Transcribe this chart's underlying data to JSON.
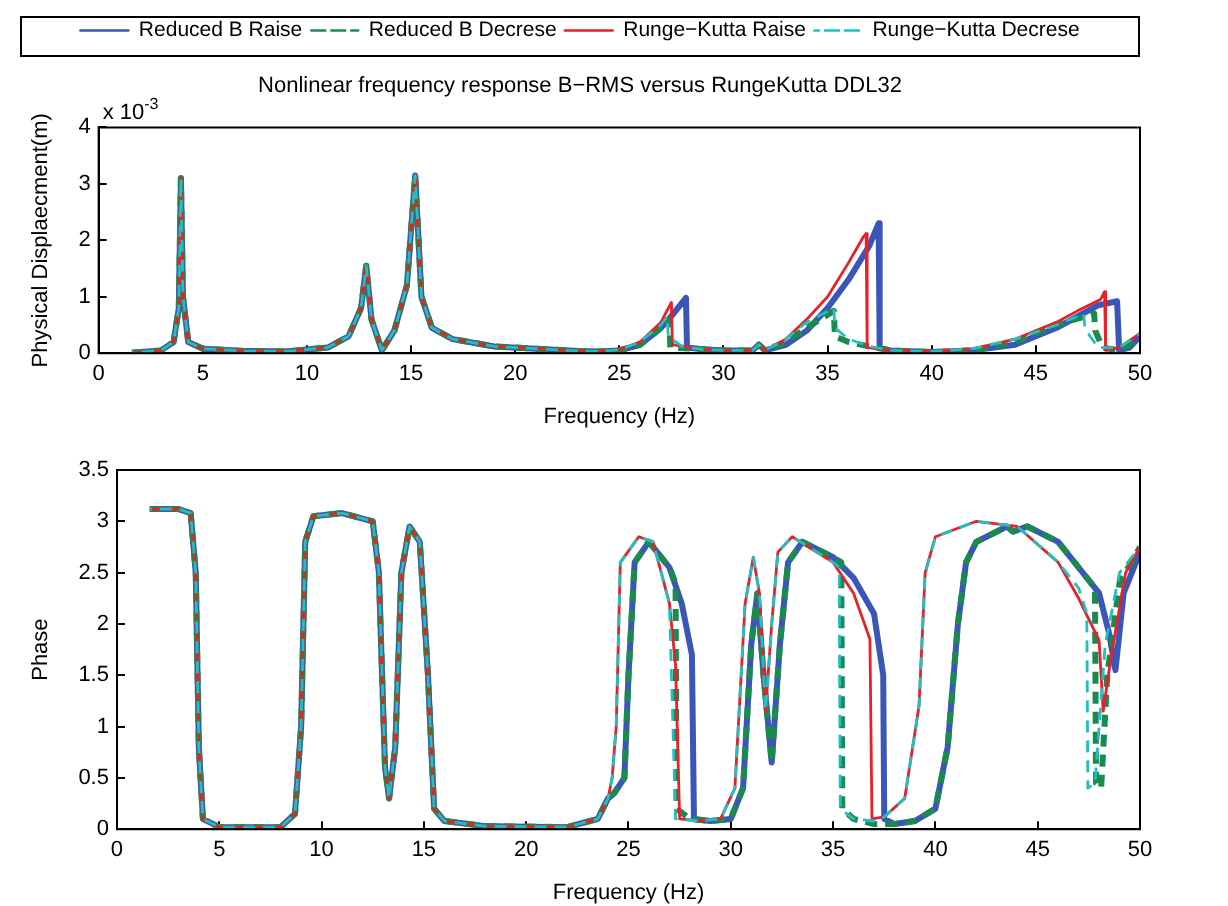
{
  "chart_data": [
    {
      "type": "line",
      "title": "Nonlinear frequency response B−RMS versus RungeKutta DDL32",
      "xlabel": "Frequency (Hz)",
      "ylabel": "Physical Displaecment(m)",
      "annotations": [
        "x 10$^{-3}$"
      ],
      "xlim": [
        0,
        50
      ],
      "xticks": [
        0,
        5,
        10,
        15,
        20,
        25,
        30,
        35,
        40,
        45,
        50
      ],
      "ylim": [
        0,
        4
      ],
      "yticks": [
        0,
        1,
        2,
        3,
        4
      ],
      "grid": false,
      "legend": "top",
      "series": [
        {
          "name": "Reduced B Raise",
          "color": "#3a56b8",
          "line_style": "solid",
          "x": [
            1.6,
            3,
            3.6,
            3.85,
            3.95,
            4.05,
            4.3,
            5,
            7,
            9,
            11,
            12,
            12.6,
            12.85,
            13.1,
            13.6,
            14.2,
            14.8,
            15.2,
            15.5,
            16,
            17,
            19,
            21,
            23,
            24,
            25,
            26,
            27,
            27.6,
            28.2,
            28.25,
            29,
            30,
            31.4,
            31.7,
            32,
            33,
            34,
            35,
            36,
            37,
            37.45,
            37.5,
            38,
            40,
            42,
            44,
            46,
            47,
            48,
            48.9,
            49,
            49.5,
            50
          ],
          "values": [
            0.01,
            0.05,
            0.2,
            0.8,
            3.1,
            1,
            0.2,
            0.08,
            0.04,
            0.03,
            0.1,
            0.3,
            0.8,
            1.55,
            0.6,
            0.05,
            0.4,
            1.2,
            3.15,
            1,
            0.45,
            0.25,
            0.12,
            0.08,
            0.04,
            0.03,
            0.05,
            0.15,
            0.45,
            0.7,
            0.98,
            0.1,
            0.07,
            0.05,
            0.05,
            0.15,
            0.05,
            0.15,
            0.4,
            0.8,
            1.3,
            1.9,
            2.3,
            0.1,
            0.05,
            0.02,
            0.05,
            0.15,
            0.45,
            0.65,
            0.85,
            0.92,
            0.05,
            0.1,
            0.3
          ]
        },
        {
          "name": "Reduced B Decrese",
          "color": "#1a8a50",
          "line_style": "dashed",
          "x": [
            1.6,
            3,
            3.6,
            3.85,
            3.95,
            4.05,
            4.3,
            5,
            7,
            9,
            11,
            12,
            12.6,
            12.85,
            13.1,
            13.6,
            14.2,
            14.8,
            15.2,
            15.5,
            16,
            17,
            19,
            21,
            23,
            24,
            25,
            26,
            27,
            27.4,
            27.45,
            29,
            30,
            31.4,
            31.7,
            32,
            33,
            34,
            35.3,
            35.35,
            36,
            37,
            38,
            40,
            42,
            44,
            46,
            47.8,
            47.85,
            48.2,
            49,
            49.5,
            50
          ],
          "values": [
            0.01,
            0.05,
            0.2,
            0.8,
            3.1,
            1,
            0.2,
            0.08,
            0.04,
            0.03,
            0.1,
            0.3,
            0.8,
            1.55,
            0.6,
            0.05,
            0.4,
            1.2,
            3.15,
            1,
            0.45,
            0.25,
            0.12,
            0.08,
            0.04,
            0.03,
            0.05,
            0.15,
            0.45,
            0.6,
            0.1,
            0.07,
            0.05,
            0.05,
            0.15,
            0.05,
            0.2,
            0.45,
            0.75,
            0.3,
            0.2,
            0.12,
            0.05,
            0.02,
            0.05,
            0.2,
            0.5,
            0.7,
            0.4,
            0.1,
            0.05,
            0.15,
            0.3
          ]
        },
        {
          "name": "Runge−Kutta Raise",
          "color": "#e8202a",
          "line_style": "solid",
          "x": [
            1.6,
            3,
            3.6,
            3.85,
            3.95,
            4.05,
            4.3,
            5,
            7,
            9,
            11,
            12,
            12.6,
            12.85,
            13.1,
            13.6,
            14.2,
            14.8,
            15.2,
            15.5,
            16,
            17,
            19,
            21,
            23,
            24,
            25,
            26,
            27,
            27.5,
            27.55,
            29,
            30,
            31.4,
            31.7,
            32,
            33,
            34,
            35,
            36,
            36.7,
            36.85,
            36.9,
            38,
            40,
            42,
            44,
            46,
            47,
            48.1,
            48.3,
            48.35,
            49,
            50
          ],
          "values": [
            0.01,
            0.05,
            0.2,
            0.8,
            3.1,
            1,
            0.2,
            0.08,
            0.04,
            0.03,
            0.1,
            0.3,
            0.8,
            1.55,
            0.6,
            0.05,
            0.4,
            1.2,
            3.15,
            1,
            0.45,
            0.25,
            0.12,
            0.08,
            0.04,
            0.03,
            0.06,
            0.2,
            0.55,
            0.9,
            0.15,
            0.07,
            0.05,
            0.05,
            0.15,
            0.05,
            0.25,
            0.6,
            1,
            1.6,
            2.05,
            2.12,
            0.1,
            0.05,
            0.03,
            0.08,
            0.25,
            0.55,
            0.75,
            0.95,
            1.09,
            0.05,
            0.1,
            0.35
          ]
        },
        {
          "name": "Runge−Kutta Decrese",
          "color": "#20c0c0",
          "line_style": "dashed",
          "x": [
            1.6,
            3,
            3.6,
            3.85,
            3.95,
            4.05,
            4.3,
            5,
            7,
            9,
            11,
            12,
            12.6,
            12.85,
            13.1,
            13.6,
            14.2,
            14.8,
            15.2,
            15.5,
            16,
            17,
            19,
            21,
            23,
            24,
            25,
            26,
            27,
            27.3,
            27.35,
            28,
            29,
            30,
            31.4,
            31.7,
            32,
            33,
            34,
            35.3,
            35.35,
            36,
            37,
            38,
            40,
            42,
            44,
            46,
            47.3,
            47.35,
            47.6,
            48,
            49,
            50
          ],
          "values": [
            0.01,
            0.05,
            0.2,
            0.8,
            3.1,
            1,
            0.2,
            0.08,
            0.04,
            0.03,
            0.1,
            0.3,
            0.8,
            1.55,
            0.6,
            0.05,
            0.4,
            1.2,
            3.15,
            1,
            0.45,
            0.25,
            0.12,
            0.08,
            0.04,
            0.03,
            0.06,
            0.2,
            0.5,
            0.65,
            0.3,
            0.12,
            0.07,
            0.05,
            0.05,
            0.15,
            0.05,
            0.25,
            0.55,
            0.8,
            0.45,
            0.25,
            0.12,
            0.05,
            0.03,
            0.08,
            0.25,
            0.5,
            0.7,
            0.45,
            0.3,
            0.1,
            0.1,
            0.35
          ]
        }
      ]
    },
    {
      "type": "line",
      "xlabel": "Frequency (Hz)",
      "ylabel": "Phase",
      "xlim": [
        0,
        50
      ],
      "xticks": [
        0,
        5,
        10,
        15,
        20,
        25,
        30,
        35,
        40,
        45,
        50
      ],
      "ylim": [
        0,
        3.5
      ],
      "yticks": [
        0,
        0.5,
        1,
        1.5,
        2,
        2.5,
        3,
        3.5
      ],
      "grid": false,
      "series": [
        {
          "color": "#3a56b8",
          "line_style": "solid",
          "x": [
            1.6,
            3,
            3.6,
            3.85,
            4,
            4.2,
            5,
            8,
            8.7,
            9,
            9.2,
            9.6,
            11,
            12.5,
            12.8,
            13.1,
            13.3,
            13.6,
            13.9,
            14.3,
            14.8,
            15.2,
            15.5,
            16,
            18,
            22,
            23.5,
            24,
            24.3,
            24.8,
            25,
            25.3,
            26,
            27,
            27.6,
            28.1,
            28.2,
            29,
            30,
            30.6,
            31,
            31.3,
            31.6,
            32,
            32.4,
            32.8,
            33.5,
            35,
            36,
            37,
            37.45,
            37.5,
            38,
            39,
            40,
            40.6,
            41.1,
            41.5,
            42,
            43.5,
            43.8,
            44.5,
            46,
            47,
            48,
            48.5,
            48.8,
            49.2,
            50
          ],
          "values": [
            3.12,
            3.12,
            3.08,
            2.5,
            0.8,
            0.1,
            0.02,
            0.02,
            0.15,
            1,
            2.8,
            3.05,
            3.08,
            3,
            2.5,
            0.6,
            0.3,
            0.8,
            2.5,
            2.95,
            2.8,
            1.5,
            0.2,
            0.08,
            0.03,
            0.02,
            0.1,
            0.3,
            0.35,
            0.5,
            1.5,
            2.6,
            2.8,
            2.55,
            2.2,
            1.7,
            0.1,
            0.08,
            0.1,
            0.4,
            1.8,
            2.3,
            1.5,
            0.65,
            1.8,
            2.6,
            2.8,
            2.65,
            2.45,
            2.1,
            1.5,
            0.1,
            0.05,
            0.08,
            0.2,
            0.8,
            2,
            2.6,
            2.8,
            2.95,
            2.9,
            2.95,
            2.8,
            2.55,
            2.3,
            1.9,
            1.55,
            2.3,
            2.7
          ]
        },
        {
          "color": "#1a8a50",
          "line_style": "dashed",
          "x": [
            1.6,
            3,
            3.6,
            3.85,
            4,
            4.2,
            5,
            8,
            8.7,
            9,
            9.2,
            9.6,
            11,
            12.5,
            12.8,
            13.1,
            13.3,
            13.6,
            13.9,
            14.3,
            14.8,
            15.2,
            15.5,
            16,
            18,
            22,
            23.5,
            24,
            24.3,
            24.8,
            25,
            25.3,
            26,
            27,
            27.3,
            27.35,
            28,
            29,
            30,
            30.6,
            31,
            31.3,
            31.6,
            32,
            32.4,
            32.8,
            33.5,
            35,
            35.4,
            35.45,
            36,
            37,
            38,
            39,
            40,
            40.6,
            41.1,
            41.5,
            42,
            43.5,
            43.8,
            44.5,
            46,
            47,
            47.8,
            47.85,
            48.1,
            48.4,
            49,
            50
          ],
          "values": [
            3.12,
            3.12,
            3.08,
            2.5,
            0.8,
            0.1,
            0.02,
            0.02,
            0.15,
            1,
            2.8,
            3.05,
            3.08,
            3,
            2.5,
            0.6,
            0.3,
            0.8,
            2.5,
            2.95,
            2.8,
            1.5,
            0.2,
            0.08,
            0.03,
            0.02,
            0.1,
            0.3,
            0.35,
            0.5,
            1.5,
            2.6,
            2.8,
            2.55,
            2.4,
            0.2,
            0.1,
            0.08,
            0.1,
            0.4,
            1.8,
            2.3,
            1.5,
            0.65,
            1.8,
            2.6,
            2.8,
            2.65,
            2.6,
            0.2,
            0.1,
            0.05,
            0.05,
            0.08,
            0.2,
            0.8,
            2,
            2.6,
            2.8,
            2.95,
            2.9,
            2.95,
            2.8,
            2.55,
            2.35,
            0.45,
            0.4,
            1.5,
            2.4,
            2.75
          ]
        },
        {
          "color": "#e8202a",
          "line_style": "solid",
          "x": [
            1.6,
            3,
            3.6,
            3.85,
            4,
            4.2,
            5,
            8,
            8.7,
            9,
            9.2,
            9.6,
            11,
            12.5,
            12.8,
            13.1,
            13.3,
            13.6,
            13.9,
            14.3,
            14.8,
            15.2,
            15.5,
            16,
            18,
            22,
            23.5,
            24,
            24.2,
            24.4,
            24.6,
            25.5,
            26.2,
            27,
            27.3,
            27.5,
            28.5,
            29.5,
            30.2,
            30.7,
            31.1,
            31.4,
            31.7,
            32,
            32.3,
            33,
            35,
            36,
            36.8,
            36.9,
            37.5,
            38.5,
            39.2,
            39.5,
            40,
            42,
            44,
            46,
            47,
            48,
            48.2,
            48.6,
            49.3,
            50
          ],
          "values": [
            3.12,
            3.12,
            3.08,
            2.5,
            0.8,
            0.1,
            0.02,
            0.02,
            0.15,
            1,
            2.8,
            3.05,
            3.08,
            3,
            2.5,
            0.6,
            0.3,
            0.8,
            2.5,
            2.95,
            2.8,
            1.5,
            0.2,
            0.08,
            0.03,
            0.02,
            0.1,
            0.3,
            0.5,
            1,
            2.6,
            2.85,
            2.8,
            2.2,
            1.6,
            0.1,
            0.08,
            0.1,
            0.4,
            2.2,
            2.65,
            2.3,
            1.15,
            2,
            2.7,
            2.85,
            2.6,
            2.3,
            1.85,
            0.1,
            0.12,
            0.3,
            1.2,
            2.5,
            2.85,
            3,
            2.95,
            2.6,
            2.25,
            1.84,
            1.15,
            1.7,
            2.5,
            2.75
          ]
        },
        {
          "color": "#20c0c0",
          "line_style": "dashed",
          "x": [
            1.6,
            3,
            3.6,
            3.85,
            4,
            4.2,
            5,
            8,
            8.7,
            9,
            9.2,
            9.6,
            11,
            12.5,
            12.8,
            13.1,
            13.3,
            13.6,
            13.9,
            14.3,
            14.8,
            15.2,
            15.5,
            16,
            18,
            22,
            23.5,
            24,
            24.2,
            24.4,
            24.6,
            25.5,
            26.2,
            27,
            27.3,
            28.5,
            29.5,
            30.2,
            30.7,
            31.1,
            31.4,
            31.7,
            32,
            32.3,
            33,
            35,
            35.3,
            35.35,
            36,
            37,
            37.5,
            38.5,
            39.2,
            39.5,
            40,
            42,
            44,
            46,
            47,
            47.4,
            47.45,
            47.8,
            48.3,
            49,
            50
          ],
          "values": [
            3.12,
            3.12,
            3.08,
            2.5,
            0.8,
            0.1,
            0.02,
            0.02,
            0.15,
            1,
            2.8,
            3.05,
            3.08,
            3,
            2.5,
            0.6,
            0.3,
            0.8,
            2.5,
            2.95,
            2.8,
            1.5,
            0.2,
            0.08,
            0.03,
            0.02,
            0.1,
            0.3,
            0.5,
            1,
            2.6,
            2.85,
            2.8,
            2.2,
            0.1,
            0.08,
            0.1,
            0.4,
            2.2,
            2.65,
            2.3,
            1.15,
            2,
            2.7,
            2.85,
            2.6,
            2.55,
            0.2,
            0.1,
            0.08,
            0.12,
            0.3,
            1.2,
            2.5,
            2.85,
            3,
            2.95,
            2.6,
            2.35,
            2.1,
            0.4,
            0.45,
            1.8,
            2.5,
            2.75
          ]
        }
      ]
    }
  ]
}
